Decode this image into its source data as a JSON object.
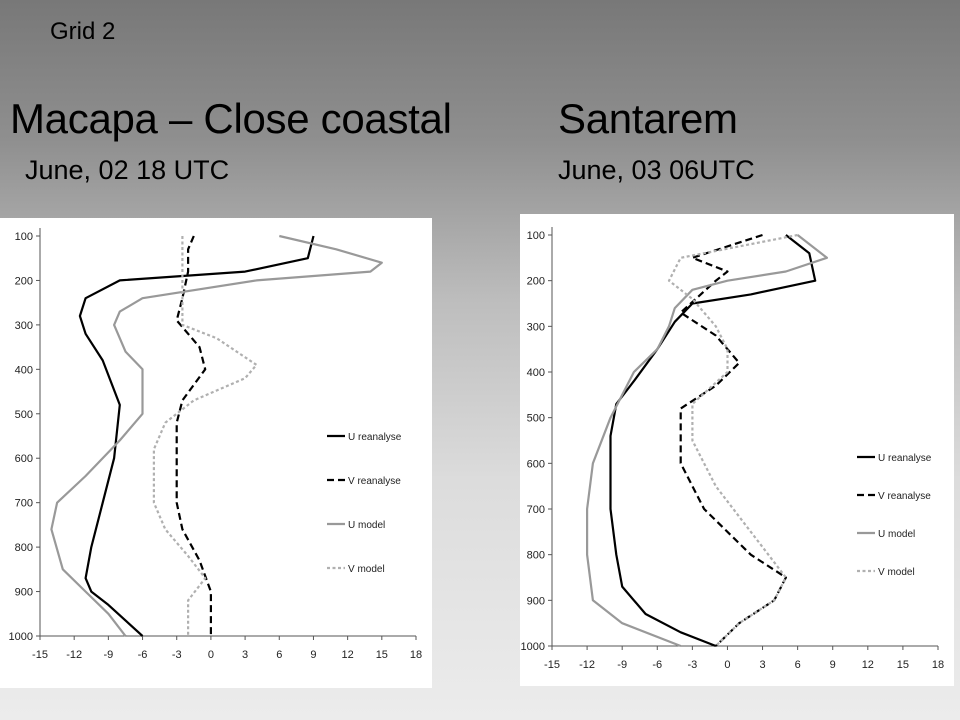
{
  "header": {
    "grid_label": "Grid 2",
    "left_title": "Macapa – Close coastal",
    "left_subtitle": "June, 02 18 UTC",
    "right_title": "Santarem",
    "right_subtitle": "June, 03 06UTC"
  },
  "chart_data": [
    {
      "type": "line",
      "title": "Macapa – Close coastal",
      "subtitle": "June, 02 18 UTC",
      "xlim": [
        -15,
        18
      ],
      "ylim": [
        1000,
        100
      ],
      "x_ticks": [
        -15,
        -12,
        -9,
        -6,
        -3,
        0,
        3,
        6,
        9,
        12,
        15,
        18
      ],
      "y_ticks": [
        100,
        200,
        300,
        400,
        500,
        600,
        700,
        800,
        900,
        1000
      ],
      "grid": false,
      "legend_position": "right",
      "series": [
        {
          "name": "U reanalyse",
          "color": "#000000",
          "dash": "solid",
          "points": [
            [
              9,
              100
            ],
            [
              8.5,
              150
            ],
            [
              3,
              180
            ],
            [
              -8,
              200
            ],
            [
              -11,
              240
            ],
            [
              -11.5,
              280
            ],
            [
              -11,
              320
            ],
            [
              -9.5,
              380
            ],
            [
              -8,
              480
            ],
            [
              -8.5,
              600
            ],
            [
              -9.5,
              700
            ],
            [
              -10.5,
              800
            ],
            [
              -11,
              870
            ],
            [
              -10.5,
              900
            ],
            [
              -9,
              930
            ],
            [
              -6,
              1000
            ]
          ]
        },
        {
          "name": "V reanalyse",
          "color": "#000000",
          "dash": "dashed",
          "points": [
            [
              -1.5,
              100
            ],
            [
              -2,
              130
            ],
            [
              -2,
              180
            ],
            [
              -2.5,
              240
            ],
            [
              -3,
              290
            ],
            [
              -1,
              350
            ],
            [
              -0.5,
              400
            ],
            [
              -2.5,
              470
            ],
            [
              -3,
              520
            ],
            [
              -3,
              600
            ],
            [
              -3,
              700
            ],
            [
              -2.5,
              760
            ],
            [
              -1,
              830
            ],
            [
              0,
              900
            ],
            [
              0,
              1000
            ]
          ]
        },
        {
          "name": "U model",
          "color": "#999999",
          "dash": "solid",
          "points": [
            [
              6,
              100
            ],
            [
              11,
              130
            ],
            [
              15,
              160
            ],
            [
              14,
              180
            ],
            [
              4,
              200
            ],
            [
              -6,
              240
            ],
            [
              -8,
              270
            ],
            [
              -8.5,
              300
            ],
            [
              -7.5,
              360
            ],
            [
              -6,
              400
            ],
            [
              -6,
              500
            ],
            [
              -8,
              560
            ],
            [
              -11,
              640
            ],
            [
              -13.5,
              700
            ],
            [
              -14,
              760
            ],
            [
              -13,
              850
            ],
            [
              -11,
              900
            ],
            [
              -9,
              950
            ],
            [
              -7.5,
              1000
            ]
          ]
        },
        {
          "name": "V model",
          "color": "#b0b0b0",
          "dash": "dotted",
          "points": [
            [
              -2.5,
              100
            ],
            [
              -2.5,
              180
            ],
            [
              -2.5,
              300
            ],
            [
              0.5,
              330
            ],
            [
              4,
              390
            ],
            [
              3,
              420
            ],
            [
              -1.5,
              470
            ],
            [
              -4,
              520
            ],
            [
              -5,
              580
            ],
            [
              -5,
              700
            ],
            [
              -4,
              760
            ],
            [
              -2,
              820
            ],
            [
              -0.5,
              870
            ],
            [
              -2,
              920
            ],
            [
              -2,
              1000
            ]
          ]
        }
      ]
    },
    {
      "type": "line",
      "title": "Santarem",
      "subtitle": "June, 03 06UTC",
      "xlim": [
        -15,
        18
      ],
      "ylim": [
        1000,
        100
      ],
      "x_ticks": [
        -15,
        -12,
        -9,
        -6,
        -3,
        0,
        3,
        6,
        9,
        12,
        15,
        18
      ],
      "y_ticks": [
        100,
        200,
        300,
        400,
        500,
        600,
        700,
        800,
        900,
        1000
      ],
      "grid": false,
      "legend_position": "right",
      "series": [
        {
          "name": "U reanalyse",
          "color": "#000000",
          "dash": "solid",
          "points": [
            [
              5,
              100
            ],
            [
              7,
              140
            ],
            [
              7.5,
              200
            ],
            [
              2,
              230
            ],
            [
              -3,
              250
            ],
            [
              -4.5,
              290
            ],
            [
              -6,
              350
            ],
            [
              -8,
              420
            ],
            [
              -9.5,
              470
            ],
            [
              -10,
              540
            ],
            [
              -10,
              700
            ],
            [
              -9.5,
              800
            ],
            [
              -9,
              870
            ],
            [
              -7,
              930
            ],
            [
              -4,
              970
            ],
            [
              -1,
              1000
            ]
          ]
        },
        {
          "name": "V reanalyse",
          "color": "#000000",
          "dash": "dashed",
          "points": [
            [
              3,
              100
            ],
            [
              -3,
              150
            ],
            [
              0,
              180
            ],
            [
              -1,
              200
            ],
            [
              -4,
              270
            ],
            [
              -1,
              320
            ],
            [
              1,
              380
            ],
            [
              -1,
              430
            ],
            [
              -4,
              480
            ],
            [
              -4,
              600
            ],
            [
              -2,
              700
            ],
            [
              2,
              800
            ],
            [
              5,
              850
            ],
            [
              4,
              900
            ],
            [
              1,
              950
            ],
            [
              -1,
              1000
            ]
          ]
        },
        {
          "name": "U model",
          "color": "#999999",
          "dash": "solid",
          "points": [
            [
              6,
              100
            ],
            [
              8.5,
              150
            ],
            [
              5,
              180
            ],
            [
              0,
              200
            ],
            [
              -3,
              220
            ],
            [
              -4.5,
              260
            ],
            [
              -5,
              300
            ],
            [
              -6,
              350
            ],
            [
              -8,
              400
            ],
            [
              -10,
              500
            ],
            [
              -11.5,
              600
            ],
            [
              -12,
              700
            ],
            [
              -12,
              800
            ],
            [
              -11.5,
              900
            ],
            [
              -9,
              950
            ],
            [
              -4,
              1000
            ]
          ]
        },
        {
          "name": "V model",
          "color": "#b0b0b0",
          "dash": "dotted",
          "points": [
            [
              6,
              100
            ],
            [
              -4,
              150
            ],
            [
              -5,
              200
            ],
            [
              -3,
              240
            ],
            [
              -2,
              270
            ],
            [
              -1,
              300
            ],
            [
              0,
              350
            ],
            [
              0,
              400
            ],
            [
              -3,
              470
            ],
            [
              -3,
              550
            ],
            [
              -1,
              650
            ],
            [
              2,
              750
            ],
            [
              5,
              850
            ],
            [
              4,
              900
            ],
            [
              1,
              950
            ],
            [
              -1,
              1000
            ]
          ]
        }
      ]
    }
  ]
}
